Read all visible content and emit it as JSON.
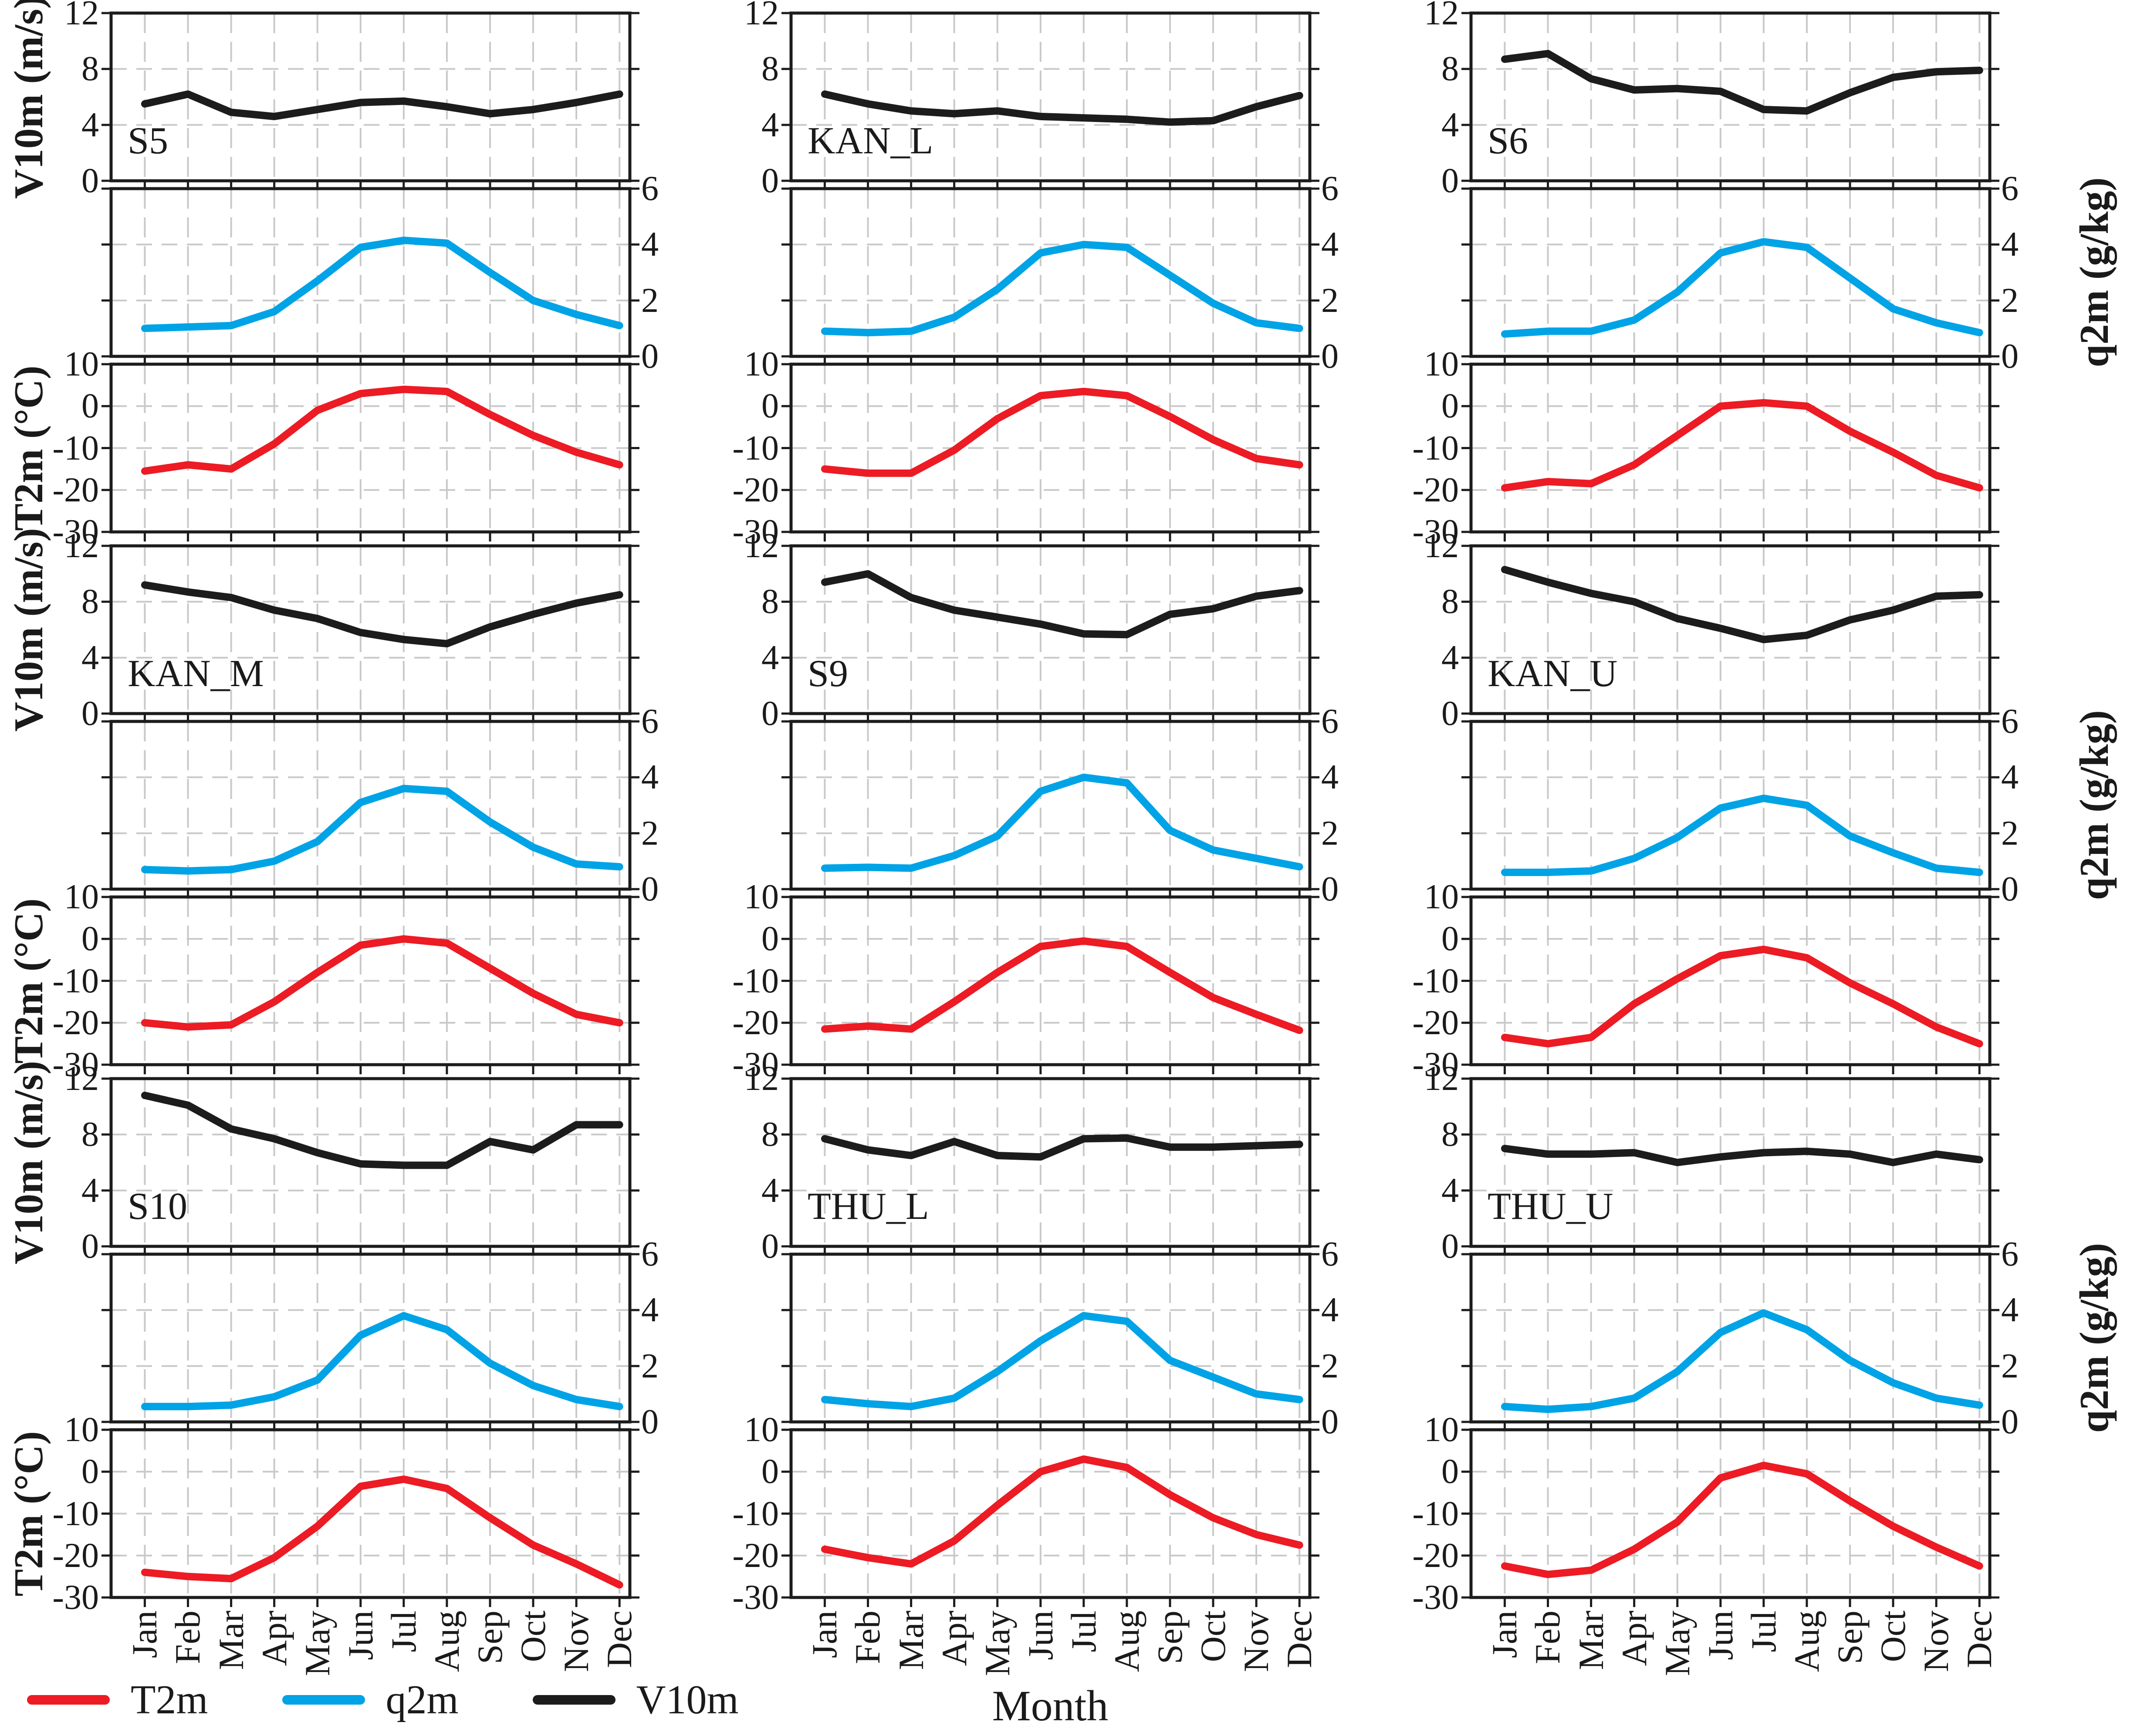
{
  "figure": {
    "xlabel": "Month",
    "months": [
      "Jan",
      "Feb",
      "Mar",
      "Apr",
      "May",
      "Jun",
      "Jul",
      "Aug",
      "Sep",
      "Oct",
      "Nov",
      "Dec"
    ],
    "colors": {
      "t2m": "#ec1b24",
      "q2m": "#00a3e6",
      "v10m": "#1c1c1c",
      "grid": "#c9c9c9",
      "frame": "#1c1c1c"
    },
    "legend": [
      {
        "label": "T2m",
        "color": "#ec1b24"
      },
      {
        "label": "q2m",
        "color": "#00a3e6"
      },
      {
        "label": "V10m",
        "color": "#1c1c1c"
      }
    ],
    "legend_position": "bottom-left"
  },
  "axes": {
    "v10m": {
      "label": "V10m (m/s)",
      "min": 0,
      "max": 12,
      "ticks": [
        12,
        8,
        4,
        0
      ],
      "gridlines": [
        8,
        4
      ],
      "side": "left"
    },
    "q2m": {
      "label": "q2m (g/kg)",
      "min": 0,
      "max": 6,
      "ticks": [
        6,
        4,
        2,
        0
      ],
      "gridlines": [
        4,
        2
      ],
      "side": "right"
    },
    "t2m": {
      "label": "T2m (°C)",
      "min": -30,
      "max": 10,
      "ticks": [
        10,
        0,
        -10,
        -20,
        -30
      ],
      "gridlines": [
        0,
        -10,
        -20
      ],
      "side": "left"
    }
  },
  "chart_data": {
    "type": "line",
    "grid": true,
    "x": [
      "Jan",
      "Feb",
      "Mar",
      "Apr",
      "May",
      "Jun",
      "Jul",
      "Aug",
      "Sep",
      "Oct",
      "Nov",
      "Dec"
    ],
    "panels_per_station": [
      "V10m",
      "q2m",
      "T2m"
    ],
    "stations": [
      {
        "station": "S5",
        "series": {
          "V10m": [
            5.5,
            6.2,
            4.9,
            4.6,
            5.1,
            5.6,
            5.7,
            5.3,
            4.8,
            5.1,
            5.6,
            6.2
          ],
          "q2m": [
            1.0,
            1.05,
            1.1,
            1.6,
            2.7,
            3.9,
            4.15,
            4.05,
            3.0,
            2.0,
            1.5,
            1.1
          ],
          "T2m": [
            -15.5,
            -14,
            -15,
            -9,
            -1,
            3,
            4,
            3.5,
            -2,
            -7,
            -11,
            -14
          ]
        }
      },
      {
        "station": "KAN_L",
        "series": {
          "V10m": [
            6.2,
            5.5,
            5.0,
            4.8,
            5.0,
            4.6,
            4.5,
            4.4,
            4.2,
            4.3,
            5.3,
            6.1
          ],
          "q2m": [
            0.9,
            0.85,
            0.9,
            1.4,
            2.4,
            3.7,
            4.0,
            3.9,
            2.9,
            1.9,
            1.2,
            1.0
          ],
          "T2m": [
            -15,
            -16,
            -16,
            -10.5,
            -3,
            2.5,
            3.5,
            2.5,
            -2.5,
            -8,
            -12.5,
            -14
          ]
        }
      },
      {
        "station": "S6",
        "series": {
          "V10m": [
            8.7,
            9.1,
            7.3,
            6.5,
            6.6,
            6.4,
            5.1,
            5.0,
            6.3,
            7.4,
            7.8,
            7.9
          ],
          "q2m": [
            0.8,
            0.9,
            0.9,
            1.3,
            2.3,
            3.7,
            4.1,
            3.9,
            2.8,
            1.7,
            1.2,
            0.85
          ],
          "T2m": [
            -19.5,
            -18,
            -18.5,
            -14,
            -7,
            0,
            0.8,
            0,
            -6,
            -11,
            -16.5,
            -19.5
          ]
        }
      },
      {
        "station": "KAN_M",
        "series": {
          "V10m": [
            9.2,
            8.7,
            8.3,
            7.4,
            6.8,
            5.8,
            5.3,
            5.0,
            6.2,
            7.1,
            7.9,
            8.5
          ],
          "q2m": [
            0.7,
            0.65,
            0.7,
            1.0,
            1.7,
            3.1,
            3.6,
            3.5,
            2.4,
            1.5,
            0.9,
            0.8
          ],
          "T2m": [
            -20,
            -21,
            -20.5,
            -15,
            -8,
            -1.5,
            0,
            -1,
            -7,
            -13,
            -18,
            -20
          ]
        }
      },
      {
        "station": "S9",
        "series": {
          "V10m": [
            9.4,
            10.0,
            8.3,
            7.4,
            6.9,
            6.4,
            5.7,
            5.65,
            7.1,
            7.5,
            8.4,
            8.8
          ],
          "q2m": [
            0.75,
            0.78,
            0.75,
            1.2,
            1.9,
            3.5,
            4.0,
            3.8,
            2.1,
            1.4,
            1.1,
            0.8
          ],
          "T2m": [
            -21.5,
            -20.8,
            -21.5,
            -15,
            -8,
            -1.8,
            -0.5,
            -1.8,
            -8,
            -14,
            -18,
            -21.8
          ]
        }
      },
      {
        "station": "KAN_U",
        "series": {
          "V10m": [
            10.3,
            9.4,
            8.6,
            8.0,
            6.8,
            6.1,
            5.3,
            5.6,
            6.7,
            7.4,
            8.4,
            8.5
          ],
          "q2m": [
            0.6,
            0.6,
            0.65,
            1.1,
            1.85,
            2.9,
            3.25,
            3.0,
            1.9,
            1.3,
            0.75,
            0.6
          ],
          "T2m": [
            -23.5,
            -25,
            -23.5,
            -15.5,
            -9.5,
            -4,
            -2.5,
            -4.5,
            -10.5,
            -15.5,
            -21,
            -25
          ]
        }
      },
      {
        "station": "S10",
        "series": {
          "V10m": [
            10.8,
            10.1,
            8.4,
            7.7,
            6.7,
            5.9,
            5.8,
            5.8,
            7.5,
            6.9,
            8.7,
            8.7
          ],
          "q2m": [
            0.55,
            0.55,
            0.6,
            0.9,
            1.5,
            3.1,
            3.8,
            3.3,
            2.1,
            1.3,
            0.8,
            0.55
          ],
          "T2m": [
            -24,
            -25,
            -25.5,
            -20.5,
            -13,
            -3.5,
            -1.8,
            -4,
            -11,
            -17.5,
            -22,
            -27
          ]
        }
      },
      {
        "station": "THU_L",
        "series": {
          "V10m": [
            7.7,
            6.9,
            6.5,
            7.5,
            6.5,
            6.4,
            7.7,
            7.75,
            7.1,
            7.1,
            7.2,
            7.3
          ],
          "q2m": [
            0.8,
            0.65,
            0.55,
            0.85,
            1.8,
            2.9,
            3.8,
            3.6,
            2.2,
            1.6,
            1.0,
            0.8
          ],
          "T2m": [
            -18.5,
            -20.5,
            -22,
            -16.5,
            -8,
            0,
            3,
            1,
            -5.5,
            -11,
            -15,
            -17.5
          ]
        }
      },
      {
        "station": "THU_U",
        "series": {
          "V10m": [
            7.0,
            6.6,
            6.6,
            6.7,
            6.0,
            6.4,
            6.7,
            6.8,
            6.6,
            6.0,
            6.6,
            6.2
          ],
          "q2m": [
            0.55,
            0.45,
            0.55,
            0.85,
            1.8,
            3.2,
            3.9,
            3.3,
            2.2,
            1.4,
            0.85,
            0.6
          ],
          "T2m": [
            -22.5,
            -24.5,
            -23.5,
            -18.5,
            -12,
            -1.5,
            1.5,
            -0.5,
            -7,
            -13,
            -18,
            -22.5
          ]
        }
      }
    ]
  }
}
